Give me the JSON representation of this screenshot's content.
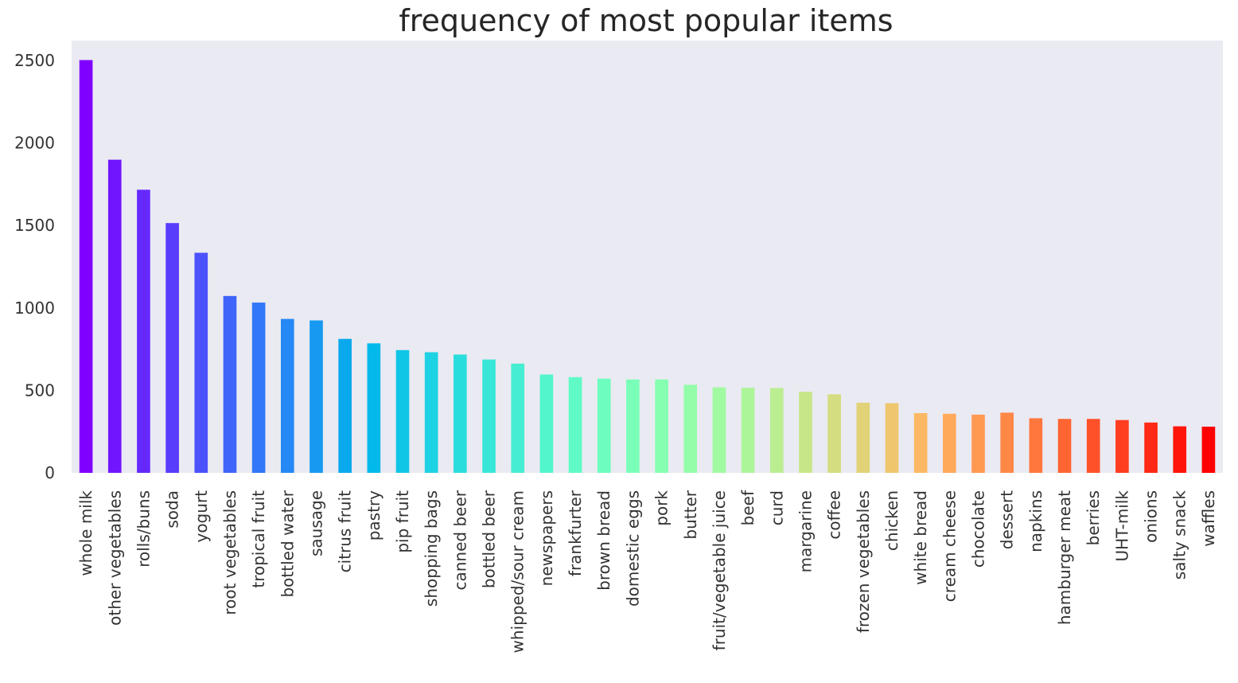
{
  "chart_data": {
    "type": "bar",
    "title": "frequency of most popular items",
    "xlabel": "",
    "ylabel": "",
    "ylim": [
      0,
      2620
    ],
    "yticks": [
      0,
      500,
      1000,
      1500,
      2000,
      2500
    ],
    "grid": false,
    "colormap": "rainbow",
    "categories": [
      "whole milk",
      "other vegetables",
      "rolls/buns",
      "soda",
      "yogurt",
      "root vegetables",
      "tropical fruit",
      "bottled water",
      "sausage",
      "citrus fruit",
      "pastry",
      "pip fruit",
      "shopping bags",
      "canned beer",
      "bottled beer",
      "whipped/sour cream",
      "newspapers",
      "frankfurter",
      "brown bread",
      "domestic eggs",
      "pork",
      "butter",
      "fruit/vegetable juice",
      "beef",
      "curd",
      "margarine",
      "coffee",
      "frozen vegetables",
      "chicken",
      "white bread",
      "cream cheese",
      "chocolate",
      "dessert",
      "napkins",
      "hamburger meat",
      "berries",
      "UHT-milk",
      "onions",
      "salty snack",
      "waffles"
    ],
    "values": [
      2502,
      1898,
      1716,
      1514,
      1334,
      1072,
      1032,
      933,
      924,
      812,
      785,
      744,
      731,
      717,
      687,
      662,
      596,
      580,
      571,
      566,
      566,
      534,
      518,
      516,
      514,
      491,
      476,
      425,
      422,
      362,
      358,
      353,
      365,
      331,
      327,
      327,
      320,
      305,
      282,
      280
    ]
  }
}
